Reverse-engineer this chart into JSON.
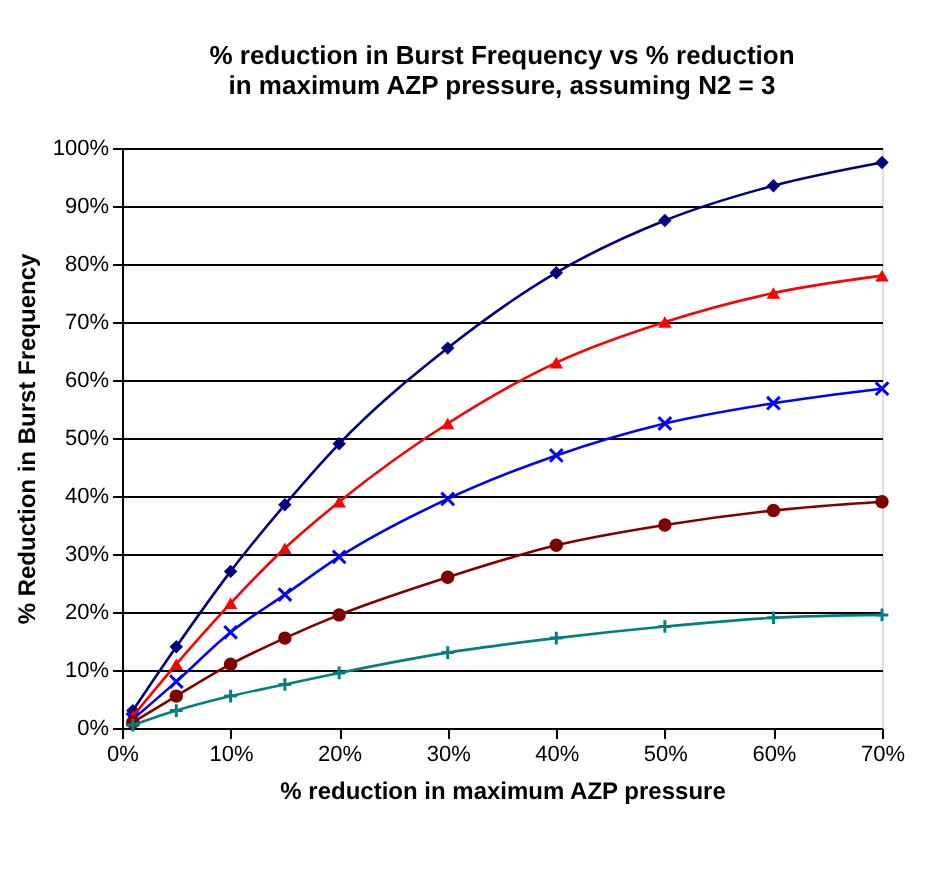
{
  "chart_data": {
    "type": "line",
    "title": "% reduction in Burst Frequency vs % reduction in maximum AZP pressure, assuming N2 = 3",
    "xlabel": "% reduction in maximum AZP pressure",
    "ylabel": "% Reduction in Burst Frequency",
    "x": [
      1,
      5,
      10,
      15,
      20,
      30,
      40,
      50,
      60,
      70
    ],
    "xlim": [
      0,
      70
    ],
    "ylim": [
      0,
      100
    ],
    "xticks": [
      {
        "value": 0,
        "label": "0%"
      },
      {
        "value": 10,
        "label": "10%"
      },
      {
        "value": 20,
        "label": "20%"
      },
      {
        "value": 30,
        "label": "30%"
      },
      {
        "value": 40,
        "label": "40%"
      },
      {
        "value": 50,
        "label": "50%"
      },
      {
        "value": 60,
        "label": "60%"
      },
      {
        "value": 70,
        "label": "70%"
      }
    ],
    "yticks": [
      {
        "value": 0,
        "label": "0%"
      },
      {
        "value": 10,
        "label": "10%"
      },
      {
        "value": 20,
        "label": "20%"
      },
      {
        "value": 30,
        "label": "30%"
      },
      {
        "value": 40,
        "label": "40%"
      },
      {
        "value": 50,
        "label": "50%"
      },
      {
        "value": 60,
        "label": "60%"
      },
      {
        "value": 70,
        "label": "70%"
      },
      {
        "value": 80,
        "label": "80%"
      },
      {
        "value": 90,
        "label": "90%"
      },
      {
        "value": 100,
        "label": "100%"
      }
    ],
    "grid": "y",
    "line_style": "solid",
    "series": [
      {
        "color": "#000080",
        "marker": "diamond",
        "values": [
          3,
          14,
          27,
          38.5,
          49,
          65.5,
          78.5,
          87.5,
          93.5,
          97.5
        ]
      },
      {
        "color": "#ff0000",
        "marker": "triangle",
        "values": [
          2,
          11,
          21.5,
          31,
          39,
          52.5,
          63,
          70,
          75,
          78
        ]
      },
      {
        "color": "#0000ff",
        "marker": "cross",
        "values": [
          1.5,
          8,
          16.5,
          23,
          29.5,
          39.5,
          47,
          52.5,
          56,
          58.5
        ]
      },
      {
        "color": "#800000",
        "marker": "circle",
        "values": [
          1,
          5.5,
          11,
          15.5,
          19.5,
          26,
          31.5,
          35,
          37.5,
          39
        ]
      },
      {
        "color": "#008080",
        "marker": "plus",
        "values": [
          0.5,
          3,
          5.5,
          7.5,
          9.5,
          13,
          15.5,
          17.5,
          19,
          19.5
        ]
      }
    ]
  }
}
